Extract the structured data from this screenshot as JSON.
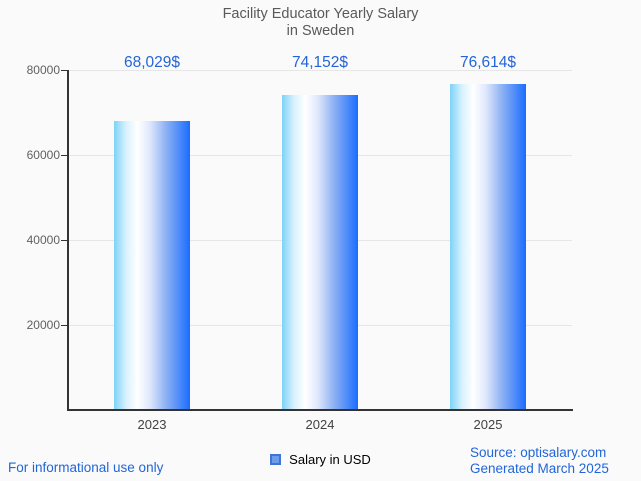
{
  "chart_data": {
    "type": "bar",
    "title": "Facility Educator Yearly Salary in Sweden",
    "title_lines": [
      "Facility Educator Yearly Salary",
      "in Sweden"
    ],
    "categories": [
      "2023",
      "2024",
      "2025"
    ],
    "series": [
      {
        "name": "Salary in USD",
        "values": [
          68029,
          74152,
          76614
        ]
      }
    ],
    "value_labels": [
      "68,029$",
      "74,152$",
      "76,614$"
    ],
    "xlabel": "",
    "ylabel": "",
    "ylim": [
      0,
      80000
    ],
    "yticks": [
      20000,
      40000,
      60000,
      80000
    ],
    "ytick_labels": [
      "20000",
      "40000",
      "60000",
      "80000"
    ],
    "grid": true,
    "legend_position": "bottom",
    "colors": {
      "background": "#fafafa",
      "title": "#5a5a5c",
      "value_label": "#2365d9",
      "tick_label": "#616161",
      "category_label": "#424242",
      "grid_line": "#e6e6e6",
      "axis_line": "#333333",
      "footer_blue": "#2166d9",
      "legend_marker_fill": "#6d9eeb",
      "legend_marker_border": "#3f76cf",
      "bar_gradient_stops": [
        "#7ed2f8 0%",
        "#d9f2fd 16%",
        "#ffffff 31%",
        "#dfe8fc 47%",
        "#8fb2f3 68%",
        "#1a6dff 100%"
      ]
    }
  },
  "legend": {
    "label": "Salary in USD"
  },
  "footer": {
    "disclaimer": "For informational use only",
    "source": "Source: optisalary.com",
    "generated": "Generated March 2025"
  }
}
